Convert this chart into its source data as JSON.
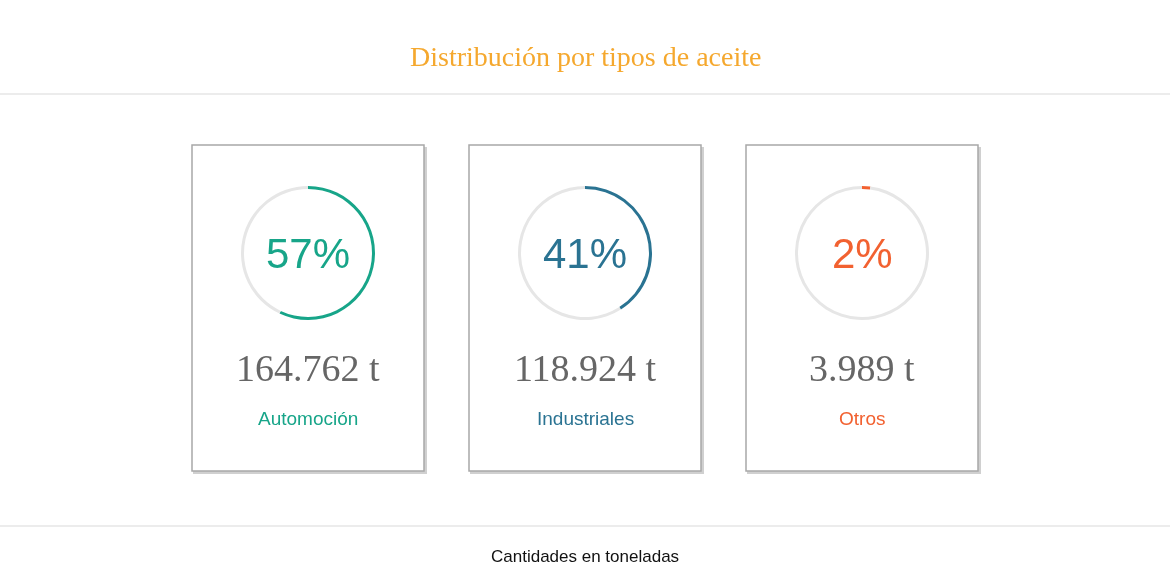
{
  "chart_data": [
    {
      "type": "donut",
      "categories": [
        null,
        null
      ],
      "values": [
        57,
        43
      ],
      "colors": [
        "#17a589",
        "#e6e6e6"
      ],
      "annotations": [
        "57%",
        "164.762 t",
        "Automoción"
      ]
    },
    {
      "type": "donut",
      "title": "Distribución por tipos de aceite",
      "categories": [
        null,
        null
      ],
      "values": [
        41,
        59
      ],
      "colors": [
        "#2a7392",
        "#e6e6e6"
      ],
      "annotations": [
        "41%",
        "118.924 t",
        "Industriales",
        "Cantidades en toneladas"
      ]
    },
    {
      "type": "donut",
      "categories": [
        null,
        null
      ],
      "values": [
        2,
        98
      ],
      "colors": [
        "#f26130",
        "#e6e6e6"
      ],
      "annotations": [
        "2%",
        "3.989 t",
        "Otros"
      ]
    }
  ]
}
